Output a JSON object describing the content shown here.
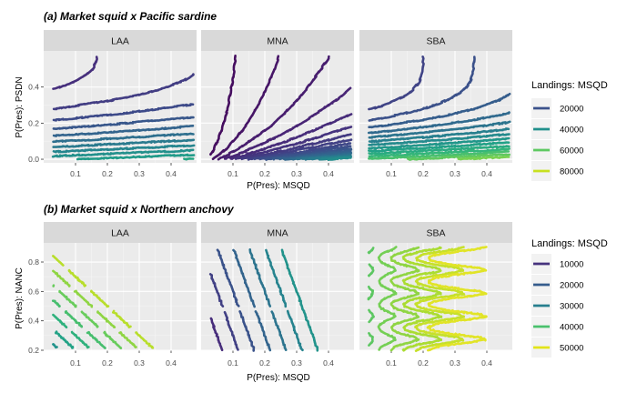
{
  "chart_data": [
    {
      "type": "contour",
      "title": "(a) Market squid x Pacific sardine",
      "xlabel": "P(Pres): MSQD",
      "ylabel": "P(Pres): PSDN",
      "xlim": [
        0.0,
        0.48
      ],
      "ylim": [
        -0.02,
        0.6
      ],
      "xticks": [
        0.1,
        0.2,
        0.3,
        0.4
      ],
      "xtick_labels": [
        "0.1",
        "0.2",
        "0.3",
        "0.4"
      ],
      "yticks": [
        0.0,
        0.2,
        0.4
      ],
      "ytick_labels": [
        "0.0",
        "0.2",
        "0.4"
      ],
      "x_range": [
        0.03,
        0.47
      ],
      "y_range": [
        0.0,
        0.57
      ],
      "grid": true,
      "facets": [
        "LAA",
        "MNA",
        "SBA"
      ],
      "legend": {
        "title": "Landings: MSQD",
        "position": "right",
        "entries": [
          "20000",
          "40000",
          "60000",
          "80000"
        ],
        "values": [
          20000,
          40000,
          60000,
          80000
        ],
        "colors": [
          "#3b528b",
          "#21908c",
          "#5ec962",
          "#c8e020"
        ]
      },
      "color_range": [
        2000,
        90000
      ],
      "contour_levels": {
        "LAA": [
          14000,
          18000,
          22000,
          26000,
          30000,
          34000,
          38000,
          42000,
          46000,
          50000,
          54000,
          58000,
          62000,
          66000,
          70000
        ],
        "MNA": [
          3000,
          5000,
          7000,
          9000,
          11000,
          13000,
          15000,
          17000,
          19000,
          21000,
          23000,
          25000,
          27000,
          29000,
          31000,
          33000,
          35000,
          37000,
          39000,
          41000,
          43000,
          45000
        ],
        "SBA": [
          20000,
          24000,
          28000,
          32000,
          36000,
          40000,
          44000,
          48000,
          52000,
          56000,
          60000,
          64000,
          68000,
          72000,
          76000,
          80000,
          84000,
          88000
        ]
      }
    },
    {
      "type": "contour",
      "title": "(b) Market squid x Northern anchovy",
      "xlabel": "P(Pres): MSQD",
      "ylabel": "P(Pres): NANC",
      "xlim": [
        0.0,
        0.48
      ],
      "ylim": [
        0.2,
        0.93
      ],
      "xticks": [
        0.1,
        0.2,
        0.3,
        0.4
      ],
      "xtick_labels": [
        "0.1",
        "0.2",
        "0.3",
        "0.4"
      ],
      "yticks": [
        0.2,
        0.4,
        0.6,
        0.8
      ],
      "ytick_labels": [
        "0.2",
        "0.4",
        "0.6",
        "0.8"
      ],
      "x_range": [
        0.03,
        0.47
      ],
      "y_range": [
        0.2,
        0.9
      ],
      "grid": true,
      "facets": [
        "LAA",
        "MNA",
        "SBA"
      ],
      "legend": {
        "title": "Landings: MSQD",
        "position": "right",
        "entries": [
          "10000",
          "20000",
          "30000",
          "40000",
          "50000"
        ],
        "values": [
          10000,
          20000,
          30000,
          40000,
          50000
        ],
        "colors": [
          "#46337e",
          "#365c8d",
          "#277f8e",
          "#4ac16d",
          "#e2e418"
        ]
      },
      "color_range": [
        5000,
        52000
      ],
      "contour_levels": {
        "LAA": [
          29000,
          32000,
          35000,
          38000,
          41000,
          44000,
          47000
        ],
        "MNA": [
          8000,
          11000,
          14000,
          17000,
          20000,
          23000,
          26000,
          29000
        ],
        "SBA": [
          40000,
          42000,
          44000,
          46000,
          48000,
          50000
        ]
      }
    }
  ]
}
